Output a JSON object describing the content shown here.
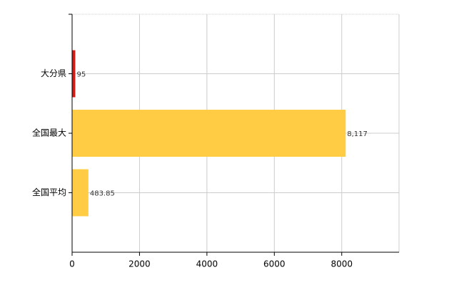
{
  "chart_data": {
    "type": "bar",
    "orientation": "horizontal",
    "categories": [
      "大分県",
      "全国最大",
      "全国平均"
    ],
    "values": [
      95,
      8117,
      483.85
    ],
    "value_labels": [
      "95",
      "8,117",
      "483.85"
    ],
    "colors": [
      "#cc1f1a",
      "#ffcc44",
      "#ffcc44"
    ],
    "xlim": [
      0,
      9700
    ],
    "xticks": [
      0,
      2000,
      4000,
      6000,
      8000
    ],
    "grid": true
  }
}
